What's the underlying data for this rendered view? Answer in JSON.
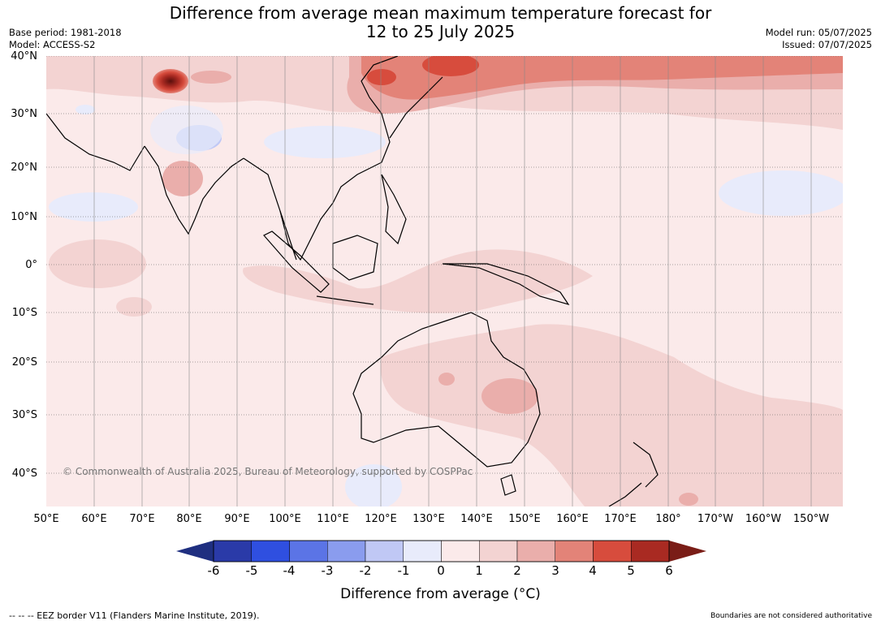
{
  "title_line1": "Difference from average mean maximum temperature forecast for",
  "title_line2": "12 to 25 July 2025",
  "base_period": "Base period: 1981-2018",
  "model": "Model: ACCESS-S2",
  "model_run": "Model run: 05/07/2025",
  "issued": "Issued: 07/07/2025",
  "lat_labels": [
    "40°N",
    "30°N",
    "20°N",
    "10°N",
    "0°",
    "10°S",
    "20°S",
    "30°S",
    "40°S"
  ],
  "lon_labels": [
    "50°E",
    "60°E",
    "70°E",
    "80°E",
    "90°E",
    "100°E",
    "110°E",
    "120°E",
    "130°E",
    "140°E",
    "150°E",
    "160°E",
    "170°E",
    "180°",
    "170°W",
    "160°W",
    "150°W"
  ],
  "copyright": "© Commonwealth of Australia 2025, Bureau of Meteorology, supported by COSPPac",
  "colorbar": {
    "ticks": [
      "-6",
      "-5",
      "-4",
      "-3",
      "-2",
      "-1",
      "0",
      "1",
      "2",
      "3",
      "4",
      "5",
      "6"
    ],
    "colors": [
      "#2a3aa8",
      "#2f4fe0",
      "#5b74e6",
      "#8a9cee",
      "#c0c8f5",
      "#e8ebfb",
      "#fbeaea",
      "#f3d3d2",
      "#eaaeab",
      "#e38378",
      "#d74c3d",
      "#a92a22"
    ],
    "under_color": "#1f2f80",
    "over_color": "#7a1d17",
    "label": "Difference from average (",
    "unit": "°C)"
  },
  "eez_note": "--  --  -- EEZ border V11 (Flanders Marine Institute, 2019).",
  "boundary_note": "Boundaries are not considered authoritative"
}
